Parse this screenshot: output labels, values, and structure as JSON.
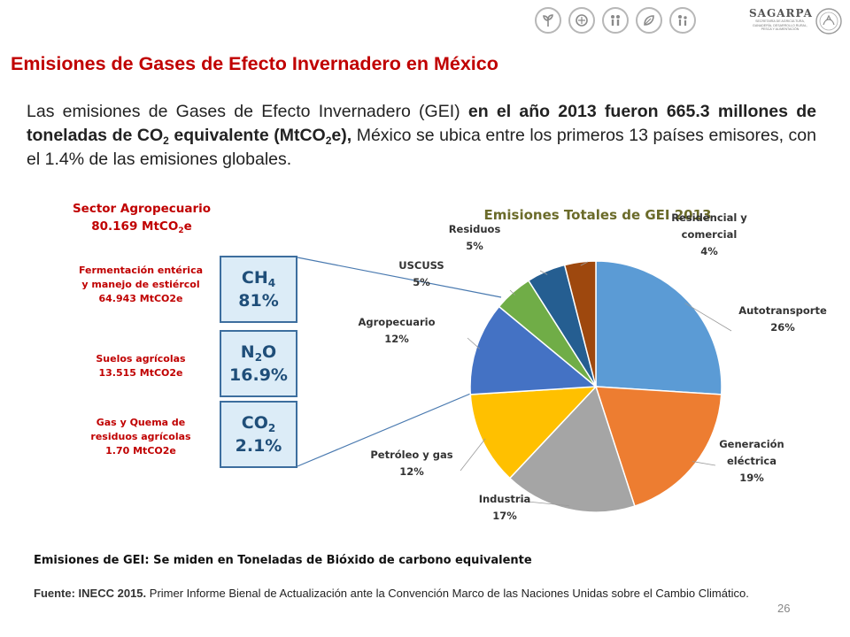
{
  "header": {
    "icons": [
      "plant-icon",
      "wheat-icon",
      "family-icon",
      "leaf-icon",
      "people-icon"
    ],
    "brand_name": "SAGARPA",
    "brand_sub": [
      "SECRETARÍA DE AGRICULTURA,",
      "GANADERÍA, DESARROLLO RURAL,",
      "PESCA Y ALIMENTACIÓN"
    ],
    "seal_icon": "mexico-seal-icon"
  },
  "title": "Emisiones de Gases de Efecto Invernadero en México",
  "intro": {
    "t1": "Las emisiones de Gases de Efecto Invernadero (GEI) ",
    "b1": "en el año 2013 fueron 665.3 millones de toneladas de CO",
    "b1_sub": "2",
    "b2": " equivalente (MtCO",
    "b2_sub": "2",
    "b3": "e),",
    "t2": " México se ubica entre los primeros 13 países emisores, con el 1.4% de las emisiones globales."
  },
  "sector": {
    "line1": "Sector Agropecuario",
    "line2_pre": "80.169 MtCO",
    "line2_sub": "2",
    "line2_post": "e"
  },
  "breakdown": [
    {
      "lines": [
        "Fermentación entérica",
        "y manejo de estiércol",
        "64.943 MtCO2e"
      ],
      "gas": "CH",
      "gas_sub": "4",
      "pct": "81%"
    },
    {
      "lines": [
        "Suelos agrícolas",
        "13.515  MtCO2e"
      ],
      "gas": "N",
      "gas_sub": "2",
      "gas_post": "O",
      "pct": "16.9%"
    },
    {
      "lines": [
        "Gas y Quema de",
        "residuos agrícolas",
        "1.70 MtCO2e"
      ],
      "gas": "CO",
      "gas_sub": "2",
      "pct": "2.1%"
    }
  ],
  "chart_data": {
    "type": "pie",
    "title": "Emisiones  Totales de GEI 2013",
    "slices": [
      {
        "name": "Autotransporte",
        "label_lines": [
          "Autotransporte"
        ],
        "value": 26,
        "pct_label": "26%",
        "color": "#5b9bd5"
      },
      {
        "name": "Generación eléctrica",
        "label_lines": [
          "Generación",
          "eléctrica"
        ],
        "value": 19,
        "pct_label": "19%",
        "color": "#ed7d31"
      },
      {
        "name": "Industria",
        "label_lines": [
          "Industria"
        ],
        "value": 17,
        "pct_label": "17%",
        "color": "#a5a5a5"
      },
      {
        "name": "Petróleo y gas",
        "label_lines": [
          "Petróleo y gas"
        ],
        "value": 12,
        "pct_label": "12%",
        "color": "#ffc000"
      },
      {
        "name": "Agropecuario",
        "label_lines": [
          "Agropecuario"
        ],
        "value": 12,
        "pct_label": "12%",
        "color": "#4472c4"
      },
      {
        "name": "USCUSS",
        "label_lines": [
          "USCUSS"
        ],
        "value": 5,
        "pct_label": "5%",
        "color": "#70ad47"
      },
      {
        "name": "Residuos",
        "label_lines": [
          "Residuos"
        ],
        "value": 5,
        "pct_label": "5%",
        "color": "#255e91"
      },
      {
        "name": "Residencial y comercial",
        "label_lines": [
          "Residencial y",
          "comercial"
        ],
        "value": 4,
        "pct_label": "4%",
        "color": "#9e480e"
      }
    ]
  },
  "note": "Emisiones de GEI: Se miden en Toneladas de Bióxido de carbono equivalente",
  "source": {
    "label": "Fuente: INECC 2015.",
    "text": " Primer Informe Bienal de Actualización ante la Convención Marco de las Naciones Unidas sobre el Cambio Climático."
  },
  "page_number": "26"
}
